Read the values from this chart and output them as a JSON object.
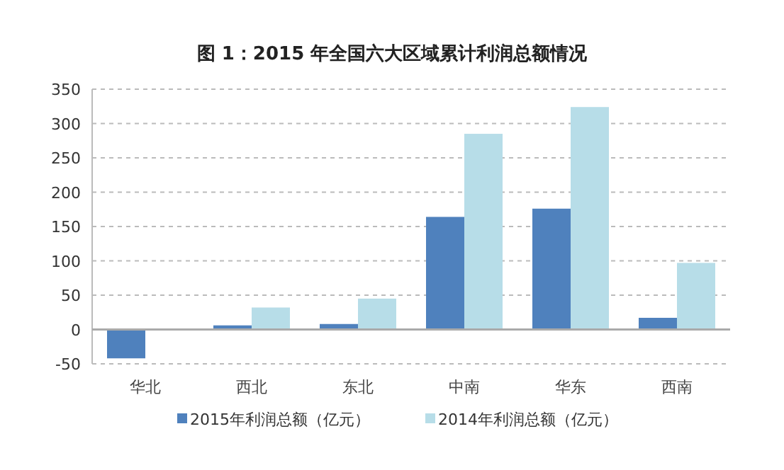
{
  "chart_data": {
    "type": "bar",
    "title": "图 1：2015 年全国六大区域累计利润总额情况",
    "categories": [
      "华北",
      "西北",
      "东北",
      "中南",
      "华东",
      "西南"
    ],
    "series": [
      {
        "name": "2015年利润总额（亿元）",
        "color": "#4f81bd",
        "values": [
          -42,
          6,
          8,
          164,
          176,
          17
        ]
      },
      {
        "name": "2014年利润总额（亿元）",
        "color": "#b7dde8",
        "values": [
          null,
          32,
          45,
          285,
          324,
          97
        ]
      }
    ],
    "ylim": [
      -50,
      350
    ],
    "yticks": [
      -50,
      0,
      50,
      100,
      150,
      200,
      250,
      300,
      350
    ],
    "grid": "y",
    "legend": "bottom"
  }
}
